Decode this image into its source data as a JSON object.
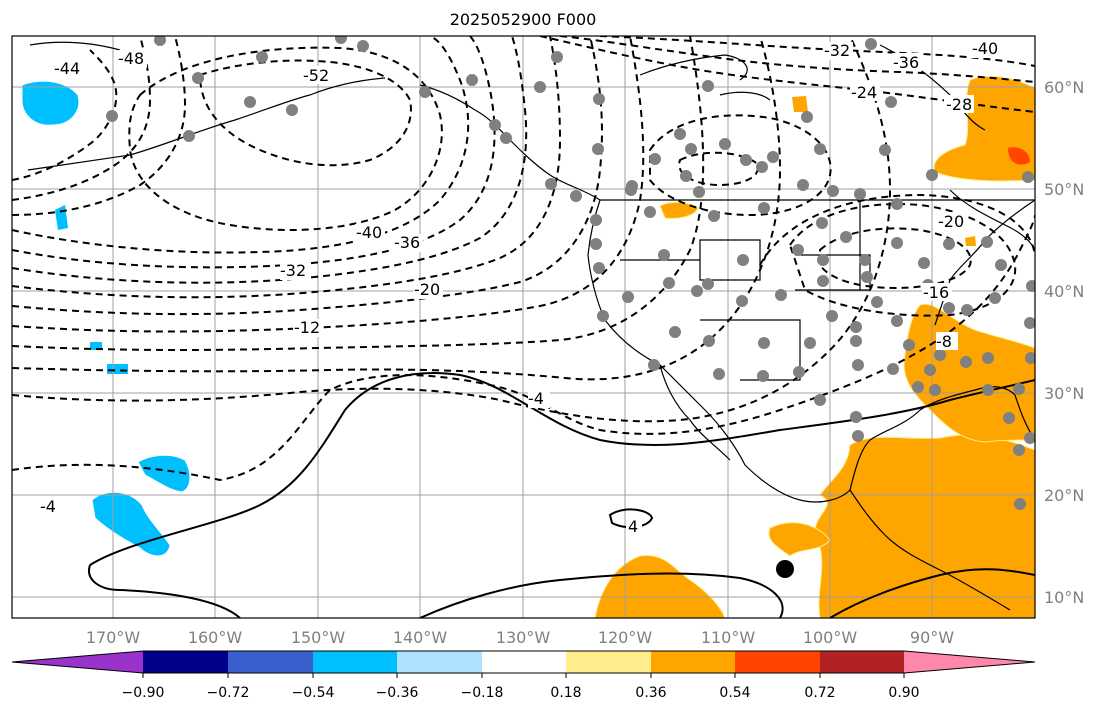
{
  "title": "2025052900 F000",
  "lon_labels": [
    "170°W",
    "160°W",
    "150°W",
    "140°W",
    "130°W",
    "120°W",
    "110°W",
    "100°W",
    "90°W"
  ],
  "lat_labels": [
    "60°N",
    "50°N",
    "40°N",
    "30°N",
    "20°N",
    "10°N"
  ],
  "contour_labels": [
    "-44",
    "-48",
    "-52",
    "-32",
    "-36",
    "-40",
    "-24",
    "-28",
    "-40",
    "-36",
    "-32",
    "-20",
    "-12",
    "-20",
    "-16",
    "-8",
    "-4",
    "4",
    "-4"
  ],
  "colorbar": {
    "ticks": [
      "−0.90",
      "−0.72",
      "−0.54",
      "−0.36",
      "−0.18",
      "0.18",
      "0.36",
      "0.54",
      "0.72",
      "0.90"
    ],
    "colors": [
      "#9933cc",
      "#00008b",
      "#3a5fcd",
      "#00bfff",
      "#b0e2ff",
      "#ffffff",
      "#ffec8b",
      "#ffa500",
      "#ff4500",
      "#b22222",
      "#ff88aa"
    ]
  },
  "colors": {
    "orange": "#ffa500",
    "red_orange": "#ff4500",
    "sky_blue": "#00bfff",
    "station_dot": "#808080",
    "grid": "#a0a0a0"
  }
}
